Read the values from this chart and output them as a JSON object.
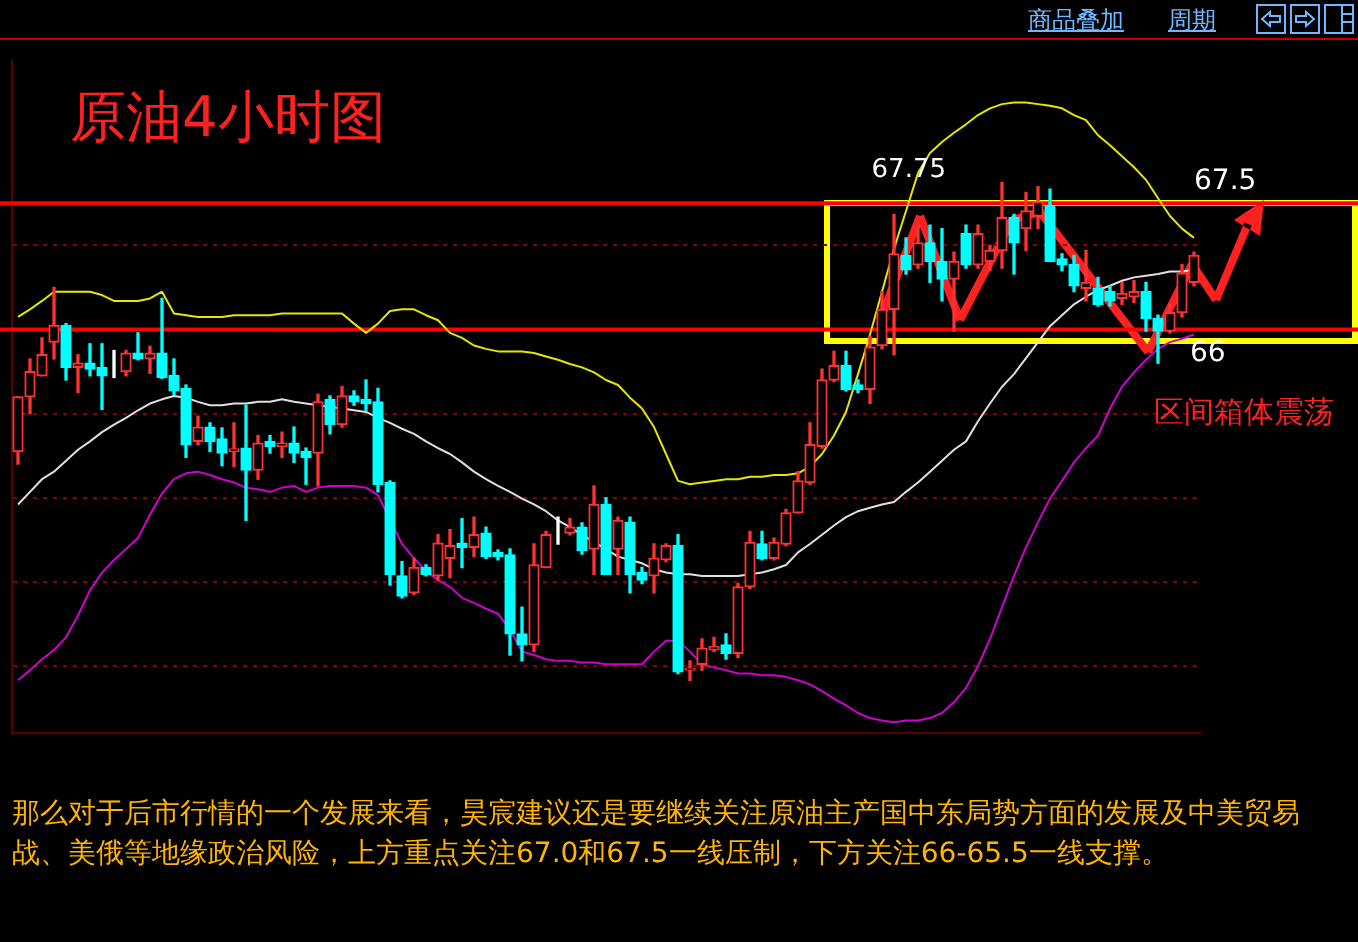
{
  "chart_data": {
    "type": "candlestick",
    "title": "原油4小时图",
    "categories": [
      null,
      null,
      null,
      null,
      null,
      null,
      null,
      null,
      null,
      null,
      null,
      null,
      null,
      null,
      null,
      null,
      null,
      null,
      null,
      null,
      null,
      null,
      null,
      null,
      null,
      null,
      null,
      null,
      null,
      null,
      null,
      null,
      null,
      null,
      null,
      null,
      null,
      null,
      null,
      null,
      null,
      null,
      null,
      null,
      null,
      null,
      null,
      null,
      null,
      null,
      null,
      null,
      null,
      null,
      null,
      null,
      null,
      null,
      null,
      null,
      null,
      null,
      null,
      null,
      null,
      null,
      null,
      null,
      null,
      null,
      null,
      null,
      null,
      null,
      null,
      null,
      null,
      null,
      null,
      null,
      null,
      null,
      null,
      null,
      null,
      null,
      null,
      null,
      null,
      null,
      null,
      null,
      null,
      null,
      null,
      null,
      null,
      null,
      null
    ],
    "ohlc": [
      [
        64.55,
        65.2,
        64.4,
        65.2
      ],
      [
        65.2,
        65.65,
        65.0,
        65.5
      ],
      [
        65.45,
        65.9,
        65.45,
        65.7
      ],
      [
        65.85,
        66.5,
        65.65,
        66.05
      ],
      [
        66.05,
        66.07,
        65.4,
        65.55
      ],
      [
        65.55,
        65.7,
        65.25,
        65.6
      ],
      [
        65.6,
        65.83,
        65.45,
        65.53
      ],
      [
        65.55,
        65.83,
        65.05,
        65.45
      ],
      [
        65.45,
        65.75,
        65.43,
        65.45
      ],
      [
        65.5,
        65.75,
        65.45,
        65.72
      ],
      [
        65.72,
        65.96,
        65.64,
        65.65
      ],
      [
        65.65,
        65.8,
        65.48,
        65.72
      ],
      [
        65.72,
        66.37,
        65.42,
        65.43
      ],
      [
        65.45,
        65.65,
        65.23,
        65.27
      ],
      [
        65.3,
        65.34,
        64.48,
        64.63
      ],
      [
        64.67,
        64.97,
        64.63,
        64.84
      ],
      [
        64.84,
        64.89,
        64.55,
        64.67
      ],
      [
        64.7,
        64.83,
        64.38,
        64.53
      ],
      [
        64.55,
        64.89,
        64.37,
        64.58
      ],
      [
        64.59,
        65.1,
        63.73,
        64.33
      ],
      [
        64.33,
        64.74,
        64.22,
        64.65
      ],
      [
        64.67,
        64.74,
        64.53,
        64.61
      ],
      [
        64.61,
        64.78,
        64.48,
        64.65
      ],
      [
        64.65,
        64.84,
        64.42,
        64.53
      ],
      [
        64.55,
        64.59,
        64.16,
        64.48
      ],
      [
        64.53,
        65.23,
        64.14,
        65.14
      ],
      [
        65.17,
        65.21,
        64.76,
        64.87
      ],
      [
        64.87,
        65.32,
        64.84,
        65.21
      ],
      [
        65.21,
        65.27,
        65.1,
        65.14
      ],
      [
        65.17,
        65.4,
        65.04,
        65.12
      ],
      [
        65.14,
        65.3,
        64.07,
        64.16
      ],
      [
        64.18,
        64.2,
        62.96,
        63.09
      ],
      [
        63.07,
        63.24,
        62.81,
        62.83
      ],
      [
        62.87,
        63.28,
        62.85,
        63.17
      ],
      [
        63.17,
        63.2,
        63.07,
        63.09
      ],
      [
        63.07,
        63.56,
        63.02,
        63.46
      ],
      [
        63.28,
        63.62,
        63.05,
        63.43
      ],
      [
        63.46,
        63.75,
        63.17,
        63.41
      ],
      [
        63.41,
        63.77,
        63.3,
        63.56
      ],
      [
        63.58,
        63.65,
        63.28,
        63.3
      ],
      [
        63.35,
        63.38,
        63.26,
        63.3
      ],
      [
        63.32,
        63.39,
        62.13,
        62.38
      ],
      [
        62.38,
        62.7,
        62.06,
        62.25
      ],
      [
        62.25,
        63.45,
        62.17,
        63.2
      ],
      [
        63.17,
        63.6,
        63.17,
        63.56
      ],
      [
        63.6,
        63.77,
        63.45,
        63.6
      ],
      [
        63.58,
        63.75,
        63.56,
        63.65
      ],
      [
        63.65,
        63.7,
        63.33,
        63.37
      ],
      [
        63.39,
        64.14,
        63.09,
        63.92
      ],
      [
        63.92,
        64.0,
        63.09,
        63.09
      ],
      [
        63.39,
        63.77,
        63.09,
        63.73
      ],
      [
        63.71,
        63.77,
        62.87,
        63.09
      ],
      [
        63.11,
        63.17,
        62.98,
        63.02
      ],
      [
        63.07,
        63.45,
        62.87,
        63.28
      ],
      [
        63.26,
        63.45,
        63.24,
        63.43
      ],
      [
        63.43,
        63.56,
        61.91,
        61.93
      ],
      [
        61.95,
        62.06,
        61.83,
        61.97
      ],
      [
        62.02,
        62.32,
        61.95,
        62.21
      ],
      [
        62.19,
        62.34,
        62.17,
        62.23
      ],
      [
        62.25,
        62.38,
        62.08,
        62.15
      ],
      [
        62.15,
        62.98,
        62.1,
        62.94
      ],
      [
        62.94,
        63.6,
        62.92,
        63.47
      ],
      [
        63.45,
        63.6,
        63.26,
        63.28
      ],
      [
        63.28,
        63.52,
        63.26,
        63.47
      ],
      [
        63.45,
        63.86,
        63.43,
        63.82
      ],
      [
        63.82,
        64.31,
        63.82,
        64.2
      ],
      [
        64.18,
        64.89,
        64.16,
        64.63
      ],
      [
        64.61,
        65.53,
        64.59,
        65.4
      ],
      [
        65.4,
        65.74,
        65.38,
        65.57
      ],
      [
        65.57,
        65.74,
        65.27,
        65.29
      ],
      [
        65.34,
        65.4,
        65.25,
        65.29
      ],
      [
        65.29,
        65.92,
        65.12,
        65.79
      ],
      [
        65.81,
        66.45,
        65.77,
        66.24
      ],
      [
        66.24,
        67.37,
        65.7,
        66.9
      ],
      [
        66.88,
        67.09,
        66.66,
        66.71
      ],
      [
        66.77,
        67.24,
        66.73,
        67.03
      ],
      [
        67.03,
        67.24,
        66.56,
        66.81
      ],
      [
        66.81,
        67.2,
        66.34,
        66.6
      ],
      [
        66.6,
        66.92,
        65.98,
        66.81
      ],
      [
        67.14,
        67.24,
        66.73,
        66.77
      ],
      [
        66.77,
        67.24,
        66.73,
        67.14
      ],
      [
        66.81,
        67.0,
        66.7,
        66.94
      ],
      [
        66.94,
        67.75,
        66.73,
        67.33
      ],
      [
        67.33,
        67.37,
        66.66,
        67.03
      ],
      [
        67.2,
        67.63,
        66.94,
        67.41
      ],
      [
        67.35,
        67.7,
        67.2,
        67.52
      ],
      [
        67.46,
        67.67,
        66.81,
        66.81
      ],
      [
        66.84,
        66.9,
        66.7,
        66.77
      ],
      [
        66.77,
        66.88,
        66.45,
        66.52
      ],
      [
        66.49,
        66.94,
        66.34,
        66.56
      ],
      [
        66.49,
        66.62,
        66.28,
        66.3
      ],
      [
        66.45,
        66.52,
        66.28,
        66.34
      ],
      [
        66.37,
        66.56,
        66.3,
        66.43
      ],
      [
        66.39,
        66.58,
        66.32,
        66.45
      ],
      [
        66.45,
        66.56,
        65.98,
        66.13
      ],
      [
        66.13,
        66.17,
        65.6,
        65.98
      ],
      [
        65.98,
        66.3,
        65.96,
        66.2
      ],
      [
        66.2,
        66.77,
        66.15,
        66.67
      ],
      [
        66.56,
        66.92,
        66.52,
        66.88
      ]
    ],
    "colors": [
      "#ff3232",
      "#ff3232",
      "#ff3232",
      "#ff3232",
      "#00ffff",
      "#ff3232",
      "#00ffff",
      "#00ffff",
      "#ffffff",
      "#ff3232",
      "#00ffff",
      "#ff3232",
      "#00ffff",
      "#00ffff",
      "#00ffff",
      "#ff3232",
      "#00ffff",
      "#00ffff",
      "#ff3232",
      "#00ffff",
      "#ff3232",
      "#00ffff",
      "#ff3232",
      "#00ffff",
      "#00ffff",
      "#ff3232",
      "#00ffff",
      "#ff3232",
      "#00ffff",
      "#00ffff",
      "#00ffff",
      "#00ffff",
      "#00ffff",
      "#ff3232",
      "#00ffff",
      "#ff3232",
      "#ff3232",
      "#00ffff",
      "#ff3232",
      "#00ffff",
      "#00ffff",
      "#00ffff",
      "#00ffff",
      "#ff3232",
      "#ff3232",
      "#ffffff",
      "#ff3232",
      "#00ffff",
      "#ff3232",
      "#00ffff",
      "#ff3232",
      "#00ffff",
      "#00ffff",
      "#ff3232",
      "#ff3232",
      "#00ffff",
      "#ff3232",
      "#ff3232",
      "#ff3232",
      "#00ffff",
      "#ff3232",
      "#ff3232",
      "#00ffff",
      "#ff3232",
      "#ff3232",
      "#ff3232",
      "#ff3232",
      "#ff3232",
      "#ff3232",
      "#00ffff",
      "#00ffff",
      "#ff3232",
      "#ff3232",
      "#ff3232",
      "#00ffff",
      "#ff3232",
      "#00ffff",
      "#00ffff",
      "#ff3232",
      "#00ffff",
      "#ff3232",
      "#ff3232",
      "#ff3232",
      "#00ffff",
      "#ff3232",
      "#ff3232",
      "#00ffff",
      "#00ffff",
      "#00ffff",
      "#ff3232",
      "#00ffff",
      "#00ffff",
      "#ff3232",
      "#ff3232",
      "#00ffff",
      "#00ffff",
      "#ff3232",
      "#ff3232",
      "#ff3232"
    ],
    "series": [
      {
        "type": "line",
        "color": "#e6e600",
        "values": [
          66.15,
          66.24,
          66.34,
          66.45,
          66.45,
          66.45,
          66.45,
          66.41,
          66.34,
          66.34,
          66.34,
          66.37,
          66.45,
          66.19,
          66.17,
          66.15,
          66.15,
          66.15,
          66.17,
          66.17,
          66.17,
          66.17,
          66.19,
          66.19,
          66.19,
          66.19,
          66.19,
          66.19,
          66.07,
          65.96,
          66.07,
          66.22,
          66.24,
          66.24,
          66.17,
          66.11,
          65.96,
          65.9,
          65.81,
          65.77,
          65.74,
          65.74,
          65.74,
          65.72,
          65.68,
          65.64,
          65.59,
          65.55,
          65.49,
          65.4,
          65.34,
          65.19,
          65.06,
          64.84,
          64.52,
          64.2,
          64.16,
          64.18,
          64.2,
          64.22,
          64.22,
          64.25,
          64.25,
          64.27,
          64.27,
          64.29,
          64.37,
          64.52,
          64.74,
          65.02,
          65.47,
          65.94,
          66.45,
          66.96,
          67.41,
          67.86,
          68.1,
          68.23,
          68.34,
          68.44,
          68.55,
          68.63,
          68.68,
          68.7,
          68.7,
          68.68,
          68.66,
          68.63,
          68.55,
          68.49,
          68.31,
          68.19,
          68.06,
          67.93,
          67.78,
          67.56,
          67.35,
          67.2,
          67.09
        ]
      },
      {
        "type": "line",
        "color": "#e0e0e0",
        "values": [
          63.92,
          64.07,
          64.22,
          64.31,
          64.44,
          64.57,
          64.67,
          64.78,
          64.87,
          64.95,
          65.04,
          65.12,
          65.17,
          65.21,
          65.19,
          65.14,
          65.1,
          65.1,
          65.12,
          65.12,
          65.14,
          65.14,
          65.17,
          65.14,
          65.12,
          65.1,
          65.08,
          65.06,
          65.04,
          65.02,
          64.95,
          64.89,
          64.82,
          64.76,
          64.67,
          64.59,
          64.52,
          64.42,
          64.31,
          64.22,
          64.14,
          64.07,
          63.99,
          63.92,
          63.84,
          63.73,
          63.65,
          63.56,
          null,
          63.39,
          63.3,
          63.26,
          63.22,
          63.15,
          63.11,
          63.09,
          63.09,
          63.07,
          63.07,
          63.07,
          63.07,
          63.09,
          63.11,
          63.15,
          63.2,
          63.35,
          63.45,
          63.56,
          63.67,
          63.77,
          63.84,
          63.88,
          63.92,
          63.95,
          64.07,
          64.18,
          64.31,
          64.44,
          64.57,
          64.67,
          64.91,
          65.12,
          65.32,
          65.47,
          65.66,
          65.85,
          66.04,
          66.17,
          66.3,
          66.39,
          66.47,
          66.52,
          66.58,
          66.62,
          66.64,
          66.66,
          66.69,
          66.69,
          66.71
        ]
      },
      {
        "type": "line",
        "color": "#d000d0",
        "values": [
          61.83,
          61.95,
          62.08,
          62.19,
          62.34,
          62.6,
          62.9,
          63.11,
          63.26,
          63.39,
          63.52,
          63.8,
          64.05,
          64.22,
          64.29,
          64.31,
          64.27,
          64.22,
          64.18,
          64.12,
          64.1,
          64.07,
          64.12,
          64.14,
          64.07,
          64.12,
          64.14,
          64.14,
          64.14,
          64.12,
          64.03,
          null,
          63.45,
          63.28,
          63.13,
          63.02,
          62.94,
          62.81,
          62.75,
          62.68,
          62.62,
          62.43,
          62.17,
          62.13,
          62.08,
          62.06,
          62.06,
          62.04,
          62.04,
          62.02,
          62.02,
          62.02,
          62.02,
          62.17,
          62.3,
          62.3,
          62.17,
          62.02,
          61.98,
          61.95,
          61.91,
          61.91,
          61.89,
          61.89,
          61.87,
          61.83,
          61.78,
          61.7,
          61.61,
          61.53,
          61.44,
          61.38,
          61.35,
          61.33,
          61.35,
          61.35,
          61.38,
          61.44,
          61.57,
          61.74,
          62.0,
          62.32,
          62.7,
          63.07,
          63.41,
          63.71,
          63.99,
          64.2,
          64.42,
          64.59,
          64.74,
          65.06,
          65.32,
          65.49,
          65.64,
          65.77,
          65.85,
          65.89,
          65.94
        ]
      }
    ],
    "ylim": [
      61.2,
      69.2
    ],
    "yticks": [
      {
        "value": 62,
        "label": null
      },
      {
        "value": 63,
        "label": null
      },
      {
        "value": 64,
        "label": null
      },
      {
        "value": 65,
        "label": null
      },
      {
        "value": 66,
        "label": null
      },
      {
        "value": 67,
        "label": null
      }
    ],
    "grid": "y",
    "ref_lines": [
      {
        "axis": "y",
        "value": 67.5,
        "label": "67.5",
        "color": "#ff0000"
      },
      {
        "axis": "y",
        "value": 66,
        "label": "66",
        "color": "#ff0000"
      }
    ],
    "annotations": [
      "67.75",
      "区间箱体震荡",
      "那么对于后市行情的一个发展来看，昊宸建议还是要继续关注原油主产国中东局势方面的发展及中美贸易战、美俄等地缘政治风险，上方重点关注67.0和67.5一线压制，下方关注66-65.5一线支撑。",
      "商品叠加",
      "周期"
    ]
  }
}
